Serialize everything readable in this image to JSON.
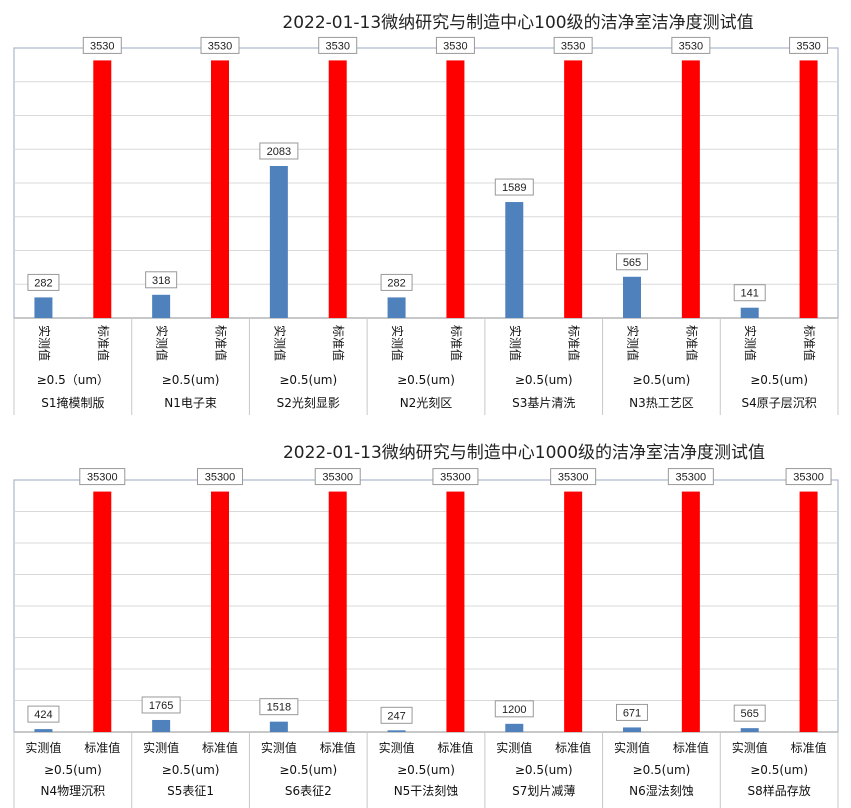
{
  "chart_data": [
    {
      "type": "bar",
      "title": "2022-01-13微纳研究与制造中心100级的洁净室洁净度测试值",
      "xlabel": "",
      "ylabel": "",
      "ylim": [
        0,
        3700
      ],
      "gridlines": true,
      "legend": "none",
      "series_labels": [
        "实测值",
        "标准值"
      ],
      "colors": {
        "实测值": "#4f81bd",
        "标准值": "#ff0000"
      },
      "groups": [
        {
          "particle": "≥0.5（um）",
          "area": "S1掩模制版",
          "values": [
            282,
            3530
          ]
        },
        {
          "particle": "≥0.5(um)",
          "area": "N1电子束",
          "values": [
            318,
            3530
          ]
        },
        {
          "particle": "≥0.5(um)",
          "area": "S2光刻显影",
          "values": [
            2083,
            3530
          ]
        },
        {
          "particle": "≥0.5(um)",
          "area": "N2光刻区",
          "values": [
            282,
            3530
          ]
        },
        {
          "particle": "≥0.5(um)",
          "area": "S3基片清洗",
          "values": [
            1589,
            3530
          ]
        },
        {
          "particle": "≥0.5(um)",
          "area": "N3热工艺区",
          "values": [
            565,
            3530
          ]
        },
        {
          "particle": "≥0.5(um)",
          "area": "S4原子层沉积",
          "values": [
            141,
            3530
          ]
        }
      ]
    },
    {
      "type": "bar",
      "title": "2022-01-13微纳研究与制造中心1000级的洁净室洁净度测试值",
      "xlabel": "",
      "ylabel": "",
      "ylim": [
        0,
        37000
      ],
      "gridlines": true,
      "legend": "none",
      "series_labels": [
        "实测值",
        "标准值"
      ],
      "colors": {
        "实测值": "#4f81bd",
        "标准值": "#ff0000"
      },
      "groups": [
        {
          "particle": "≥0.5(um)",
          "area": "N4物理沉积",
          "values": [
            424,
            35300
          ]
        },
        {
          "particle": "≥0.5(um)",
          "area": "S5表征1",
          "values": [
            1765,
            35300
          ]
        },
        {
          "particle": "≥0.5(um)",
          "area": "S6表征2",
          "values": [
            1518,
            35300
          ]
        },
        {
          "particle": "≥0.5(um)",
          "area": "N5干法刻蚀",
          "values": [
            247,
            35300
          ]
        },
        {
          "particle": "≥0.5(um)",
          "area": "S7划片减薄",
          "values": [
            1200,
            35300
          ]
        },
        {
          "particle": "≥0.5(um)",
          "area": "N6湿法刻蚀",
          "values": [
            671,
            35300
          ]
        },
        {
          "particle": "≥0.5(um)",
          "area": "S8样品存放",
          "values": [
            565,
            35300
          ]
        }
      ]
    }
  ]
}
